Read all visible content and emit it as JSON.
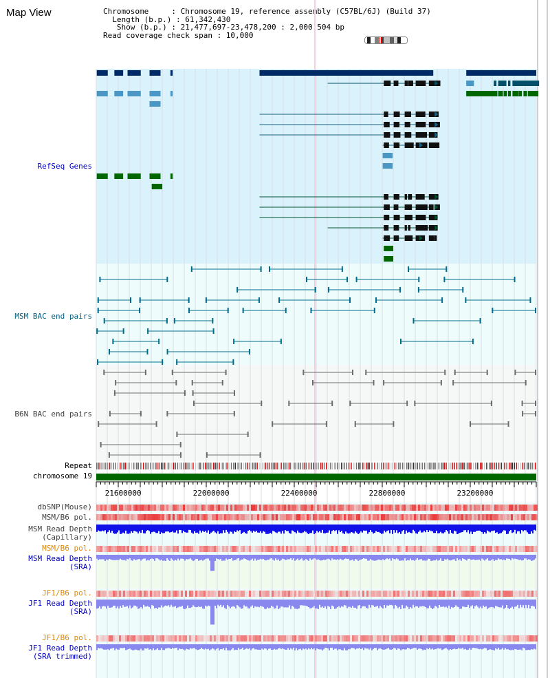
{
  "view_title": "Map View",
  "info_lines": [
    "Chromosome     : Chromosome 19, reference assembly (C57BL/6J) (Build 37)",
    "  Length (b.p.) : 61,342,430",
    "   Show (b.p.) : 21,477,697-23,478,200 : 2,000,504 bp",
    "Read coverage check span : 10,000"
  ],
  "region": {
    "start": 21477697,
    "end": 23478200
  },
  "axis_ticks": [
    21600000,
    22000000,
    22400000,
    22800000,
    23200000
  ],
  "track_labels": {
    "refseq": "RefSeq Genes",
    "msm_bac": "MSM BAC end pairs",
    "b6n_bac": "B6N BAC end pairs",
    "repeat": "Repeat",
    "chromosome": "chromosome 19",
    "dbsnp": "dbSNP(Mouse)",
    "msm_b6_pol": "MSM/B6 pol.",
    "msm_depth_cap": "MSM Read Depth\n(Capillary)",
    "msm_b6_pol_sra": "MSM/B6 pol.",
    "msm_depth_sra": "MSM Read Depth\n(SRA)",
    "jf1_b6_pol": "JF1/B6 pol.",
    "jf1_depth_sra": "JF1 Read Depth\n(SRA)",
    "jf1_b6_pol_trim": "JF1/B6 pol.",
    "jf1_depth_trim": "JF1 Read Depth\n(SRA trimmed)"
  },
  "colors": {
    "refseq_bg": "#d9f2fb",
    "bac_bg": "#eefcfc",
    "msm_label": "#006080",
    "refseq_label": "#0000c0",
    "b6n_label": "#404040",
    "depth_label": "#0000c0",
    "pol_label": "#e08800",
    "gene_dark": "#002a66",
    "gene_mid": "#4a96c4",
    "gene_green": "#006600",
    "msm_pair": "#006c8c",
    "b6n_pair": "#6c6c6c",
    "chrom_bar": "#006600",
    "depth_blue": "#1010e8",
    "depth_light": "#8888ee"
  },
  "genes": {
    "lane_step": 15,
    "exon_sets": [
      [
        21509000,
        21555000,
        21595000,
        21635000,
        21665000,
        21725000,
        21850000,
        21890000,
        21955000,
        21967000
      ],
      [
        22785000,
        22790000,
        22830000,
        22840000,
        22880000,
        22895000,
        22930000,
        22940000,
        22950000,
        22960000,
        22990000,
        23000000,
        23015000
      ],
      [
        23285000,
        23305000,
        23330000,
        23350000,
        23370000,
        23380000,
        23400000,
        23420000,
        23440000,
        23450000,
        23465000
      ]
    ]
  },
  "ideogram_bands": [
    {
      "pos": 0.0,
      "w": 0.05,
      "color": "#ffffff"
    },
    {
      "pos": 0.05,
      "w": 0.08,
      "color": "#202020"
    },
    {
      "pos": 0.13,
      "w": 0.1,
      "color": "#ffffff"
    },
    {
      "pos": 0.23,
      "w": 0.09,
      "color": "#808080"
    },
    {
      "pos": 0.32,
      "w": 0.06,
      "color": "#ffffff"
    },
    {
      "pos": 0.38,
      "w": 0.07,
      "color": "#404040"
    },
    {
      "pos": 0.45,
      "w": 0.14,
      "color": "#c0c0c0"
    },
    {
      "pos": 0.59,
      "w": 0.1,
      "color": "#606060"
    },
    {
      "pos": 0.69,
      "w": 0.08,
      "color": "#d8d8d8"
    },
    {
      "pos": 0.77,
      "w": 0.08,
      "color": "#202020"
    },
    {
      "pos": 0.85,
      "w": 0.15,
      "color": "#ffffff"
    }
  ],
  "ideogram_marker": 0.35
}
